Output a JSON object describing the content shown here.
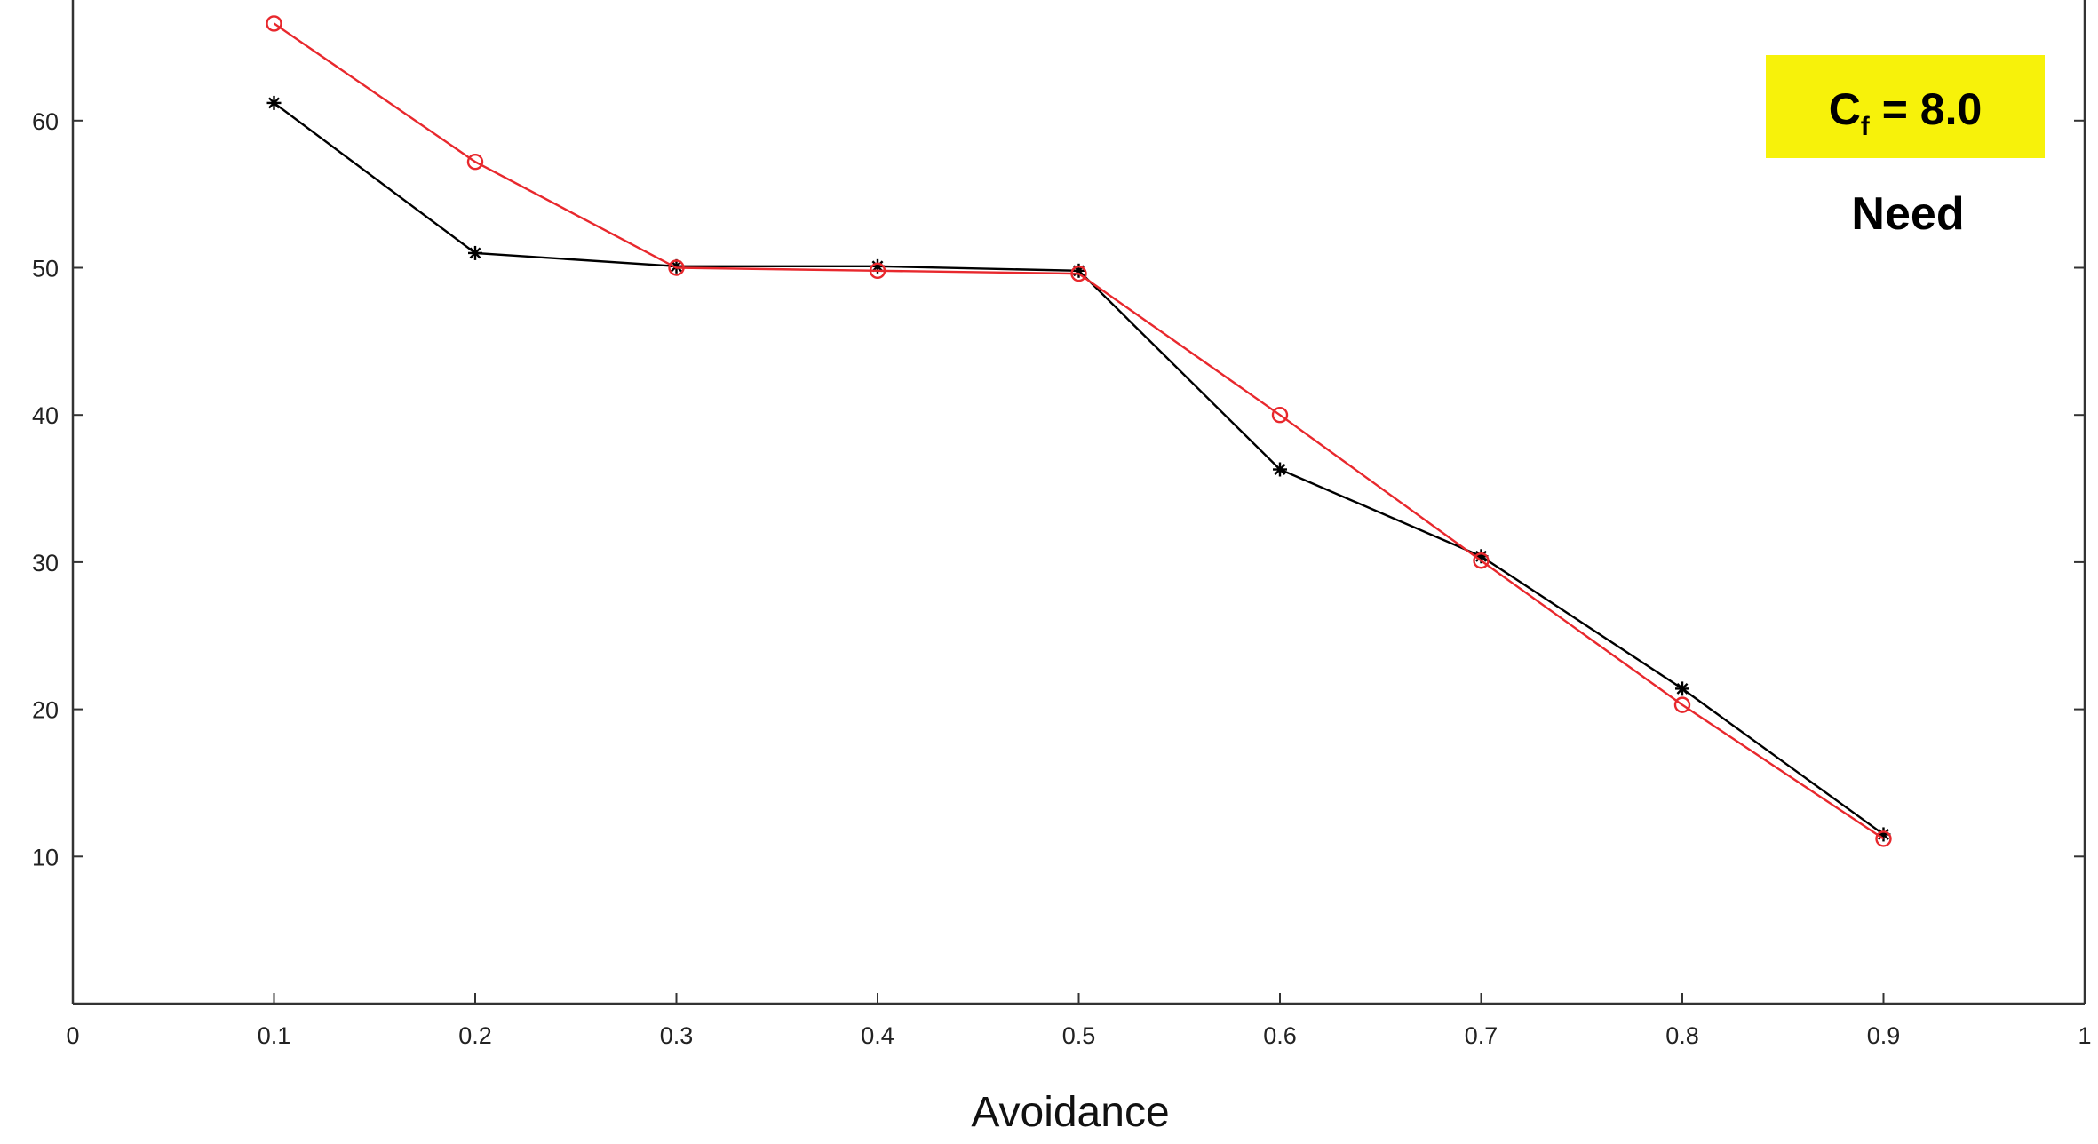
{
  "chart_data": {
    "type": "line",
    "title": "",
    "xlabel": "Avoidance",
    "ylabel": "",
    "xlim": [
      0,
      1
    ],
    "ylim": [
      0,
      67
    ],
    "grid": false,
    "x_ticks": [
      "0",
      "0.1",
      "0.2",
      "0.3",
      "0.4",
      "0.5",
      "0.6",
      "0.7",
      "0.8",
      "0.9",
      "1"
    ],
    "y_ticks": [
      "10",
      "20",
      "30",
      "40",
      "50",
      "60"
    ],
    "x": [
      0.1,
      0.2,
      0.3,
      0.4,
      0.5,
      0.6,
      0.7,
      0.8,
      0.9
    ],
    "series": [
      {
        "color": "#000000",
        "marker": "asterisk",
        "values": [
          61.2,
          51.0,
          50.1,
          50.1,
          49.8,
          36.3,
          30.4,
          21.4,
          11.5
        ]
      },
      {
        "color": "#e8282d",
        "marker": "circle",
        "values": [
          66.6,
          57.2,
          50.0,
          49.8,
          49.6,
          40.0,
          30.1,
          20.3,
          11.2
        ]
      }
    ],
    "annotations": {
      "badge": {
        "prefix": "C",
        "subscript": "f",
        "suffix": " = 8.0",
        "background": "#f7f20a"
      },
      "label": "Need"
    }
  }
}
